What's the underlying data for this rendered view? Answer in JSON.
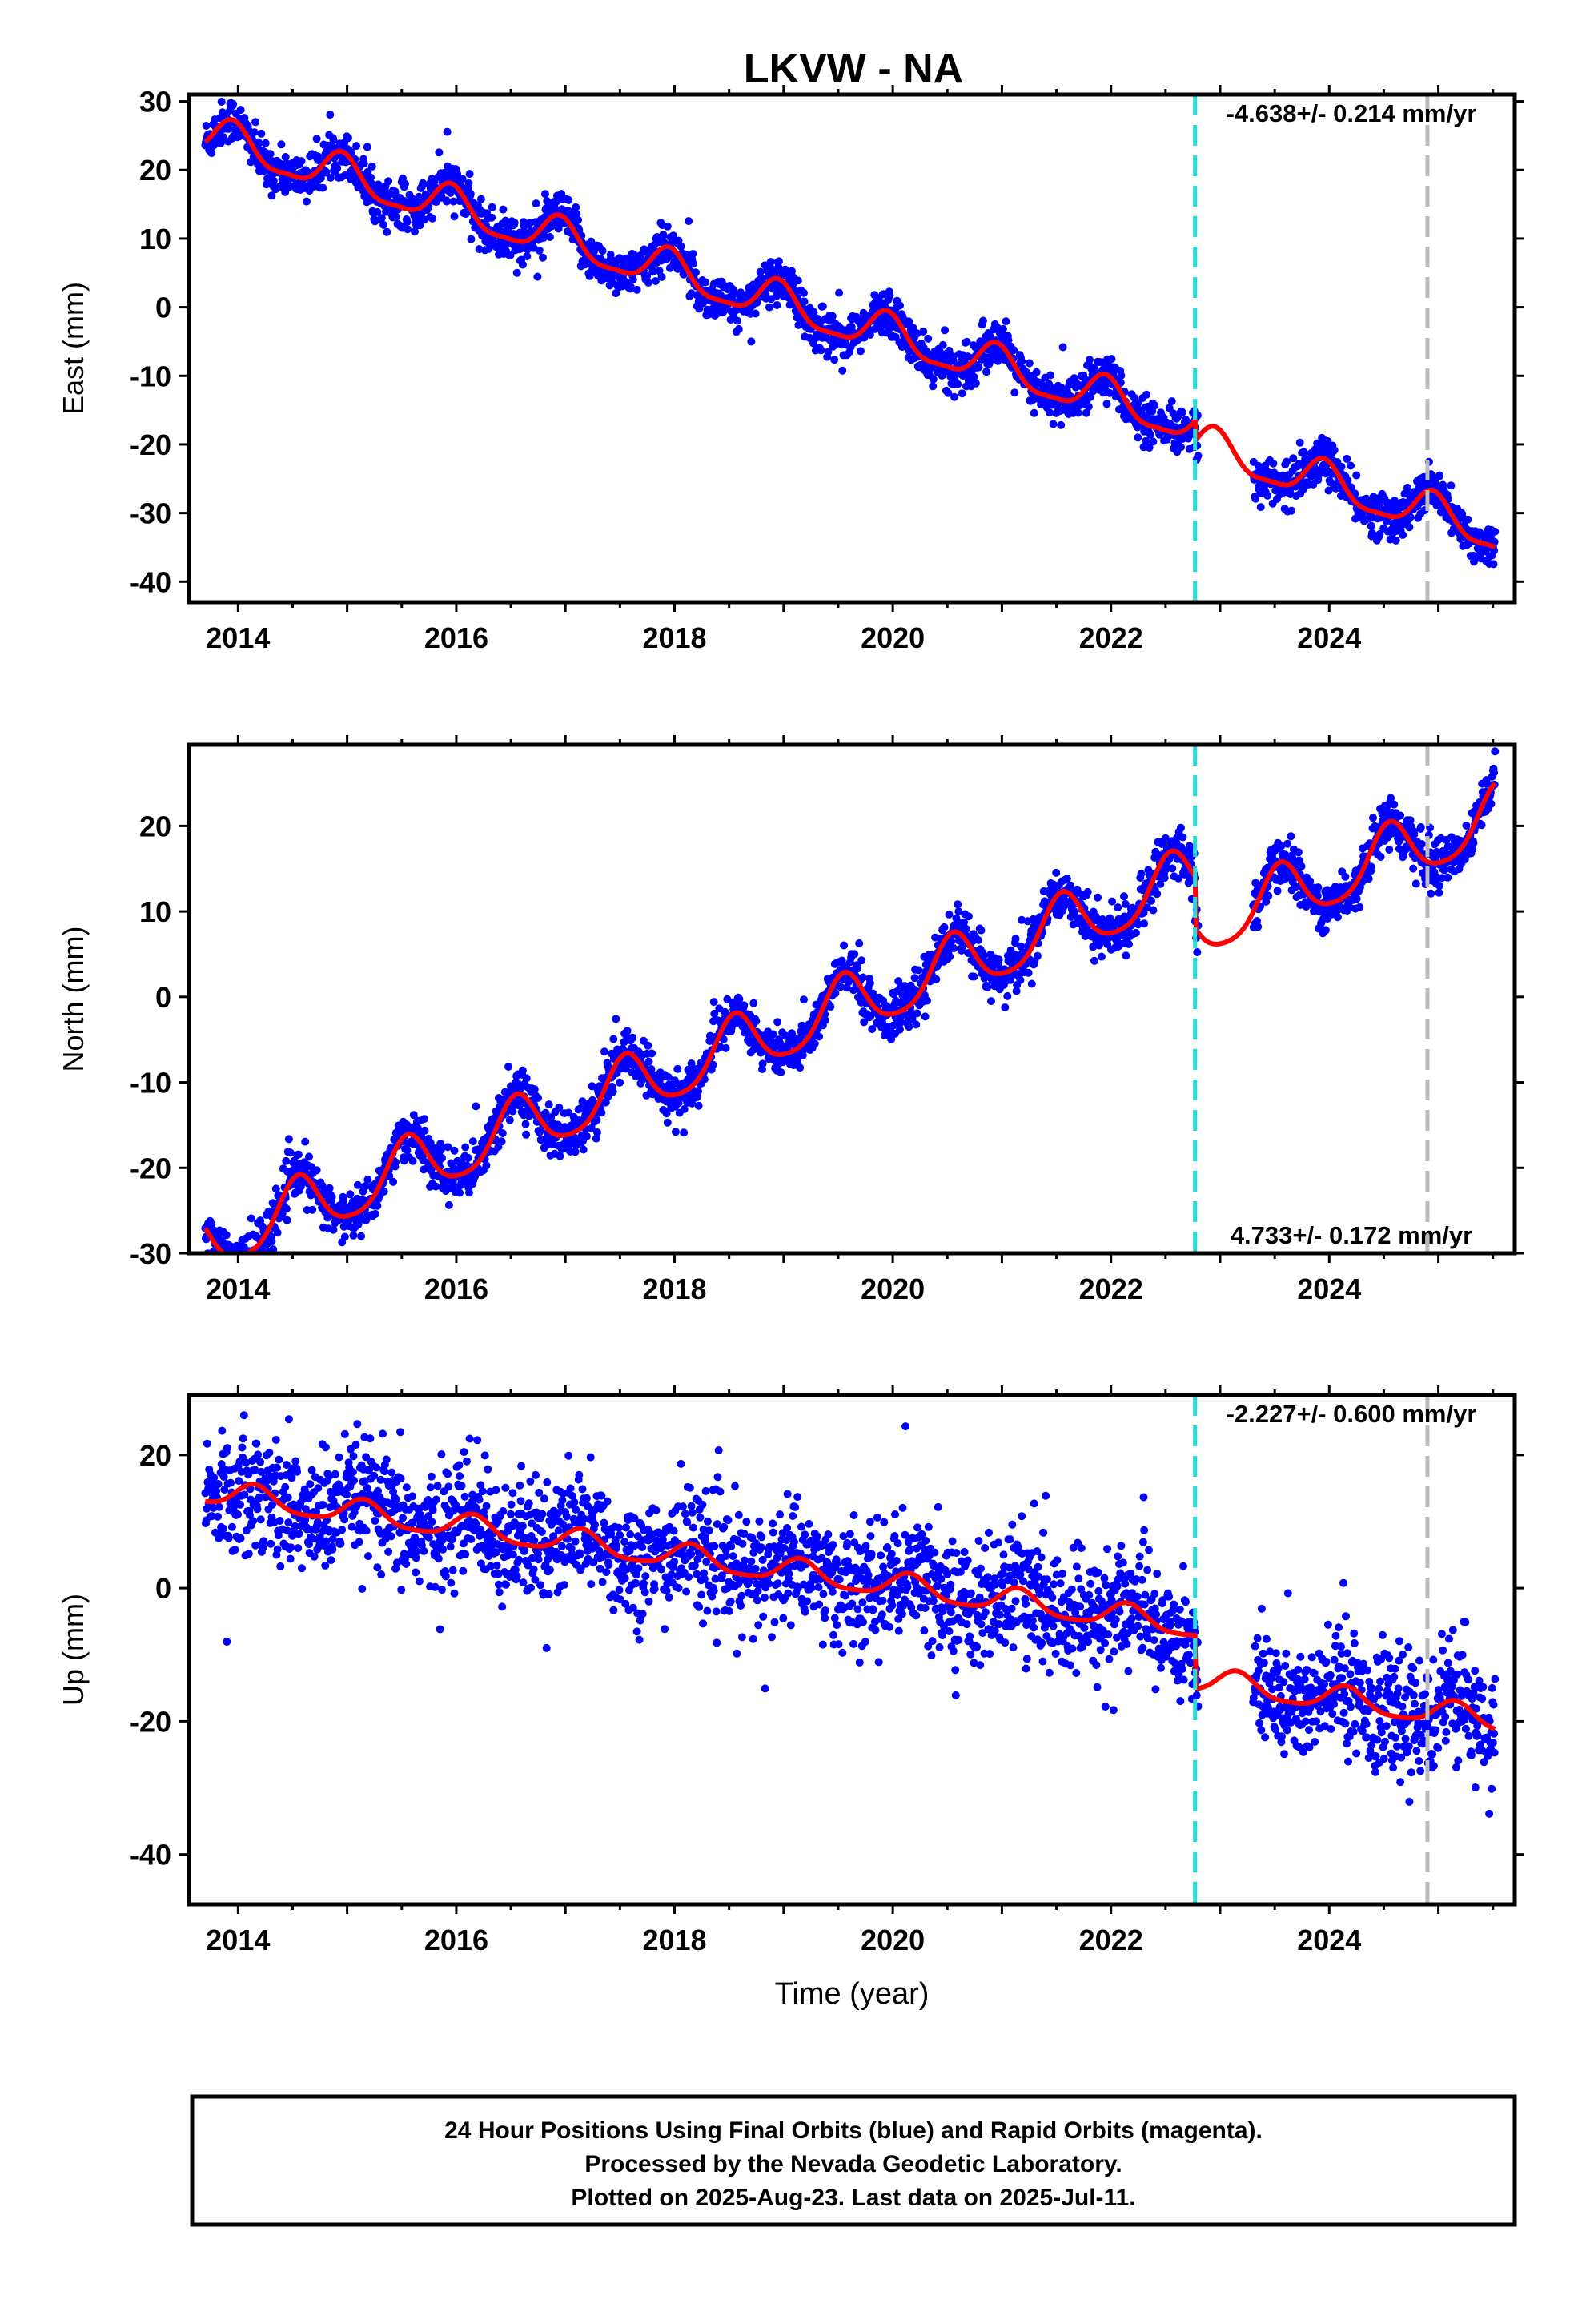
{
  "title": "LKVW - NA",
  "chart_data": [
    {
      "type": "scatter",
      "ylabel": "East (mm)",
      "xlabel": "",
      "xlim": [
        2013.55,
        2025.7
      ],
      "ylim": [
        -43,
        31
      ],
      "xticks": [
        2014,
        2016,
        2018,
        2020,
        2022,
        2024
      ],
      "yticks": [
        -40,
        -30,
        -20,
        -10,
        0,
        10,
        20,
        30
      ],
      "rate_label": "-4.638+/- 0.214 mm/yr",
      "rate_position": "top-right",
      "offset_lines": [
        {
          "x": 2022.77,
          "color": "#22dddd"
        },
        {
          "x": 2024.9,
          "color": "#bbbbbb"
        }
      ],
      "data_gap": [
        2022.8,
        2023.3
      ],
      "series": [
        {
          "name": "24 Hour Positions Using Final Orbits",
          "color": "#0000ff",
          "kind": "points",
          "model": {
            "start": 2013.7,
            "end": 2025.52,
            "t0": 2019.5,
            "offset": -2.0,
            "rate": -4.638,
            "amp": 2.8,
            "phase_peak": 0.95,
            "amp2": 0.8,
            "noise": 1.6,
            "jumps": [
              {
                "t": 2022.77,
                "dy": -3.0
              }
            ]
          }
        },
        {
          "name": "model fit",
          "color": "#ff0000",
          "kind": "line",
          "model": {
            "start": 2013.7,
            "end": 2025.52,
            "t0": 2019.5,
            "offset": -2.0,
            "rate": -4.638,
            "amp": 2.8,
            "phase_peak": 0.95,
            "amp2": 0.8,
            "jumps": [
              {
                "t": 2022.77,
                "dy": -3.0
              }
            ]
          }
        }
      ]
    },
    {
      "type": "scatter",
      "ylabel": "North (mm)",
      "xlabel": "",
      "xlim": [
        2013.55,
        2025.7
      ],
      "ylim": [
        -30,
        29.5
      ],
      "xticks": [
        2014,
        2016,
        2018,
        2020,
        2022,
        2024
      ],
      "yticks": [
        -30,
        -20,
        -10,
        0,
        10,
        20
      ],
      "rate_label": "4.733+/- 0.172 mm/yr",
      "rate_position": "bottom-right",
      "offset_lines": [
        {
          "x": 2022.77,
          "color": "#22dddd"
        },
        {
          "x": 2024.9,
          "color": "#bbbbbb"
        }
      ],
      "data_gap": [
        2022.8,
        2023.3
      ],
      "series": [
        {
          "name": "24 Hour Positions Using Final Orbits",
          "color": "#0000ff",
          "kind": "points",
          "model": {
            "start": 2013.7,
            "end": 2025.52,
            "t0": 2019.5,
            "offset": -1.5,
            "rate": 4.733,
            "amp": 3.5,
            "phase_peak": 0.55,
            "amp2": 0.6,
            "noise": 1.4,
            "jumps": [
              {
                "t": 2022.77,
                "dy": -6.0
              }
            ]
          }
        },
        {
          "name": "model fit",
          "color": "#ff0000",
          "kind": "line",
          "model": {
            "start": 2013.7,
            "end": 2025.52,
            "t0": 2019.5,
            "offset": -1.5,
            "rate": 4.733,
            "amp": 3.5,
            "phase_peak": 0.55,
            "amp2": 0.6,
            "jumps": [
              {
                "t": 2022.77,
                "dy": -6.0
              }
            ]
          }
        }
      ]
    },
    {
      "type": "scatter",
      "ylabel": "Up (mm)",
      "xlabel": "Time (year)",
      "xlim": [
        2013.55,
        2025.7
      ],
      "ylim": [
        -47.5,
        29
      ],
      "xticks": [
        2014,
        2016,
        2018,
        2020,
        2022,
        2024
      ],
      "yticks": [
        -40,
        -20,
        0,
        20
      ],
      "rate_label": "-2.227+/- 0.600 mm/yr",
      "rate_position": "top-right",
      "offset_lines": [
        {
          "x": 2022.77,
          "color": "#22dddd"
        },
        {
          "x": 2024.9,
          "color": "#bbbbbb"
        }
      ],
      "data_gap": [
        2022.8,
        2023.3
      ],
      "series": [
        {
          "name": "24 Hour Positions Using Final Orbits",
          "color": "#0000ff",
          "kind": "points",
          "model": {
            "start": 2013.7,
            "end": 2025.52,
            "t0": 2019.5,
            "offset": 1.5,
            "rate": -2.227,
            "amp": 1.8,
            "phase_peak": 0.15,
            "amp2": 0.4,
            "noise": 4.5,
            "jumps": [
              {
                "t": 2022.77,
                "dy": -8.0
              }
            ]
          }
        },
        {
          "name": "model fit",
          "color": "#ff0000",
          "kind": "line",
          "model": {
            "start": 2013.7,
            "end": 2025.52,
            "t0": 2019.5,
            "offset": 1.5,
            "rate": -2.227,
            "amp": 1.8,
            "phase_peak": 0.15,
            "amp2": 0.4,
            "jumps": [
              {
                "t": 2022.77,
                "dy": -8.0
              }
            ]
          }
        }
      ]
    }
  ],
  "footer": {
    "line1": "24 Hour Positions Using Final Orbits (blue) and Rapid Orbits (magenta).",
    "line2": "Processed by the Nevada Geodetic Laboratory.",
    "line3": "Plotted on 2025-Aug-23. Last data on 2025-Jul-11."
  }
}
